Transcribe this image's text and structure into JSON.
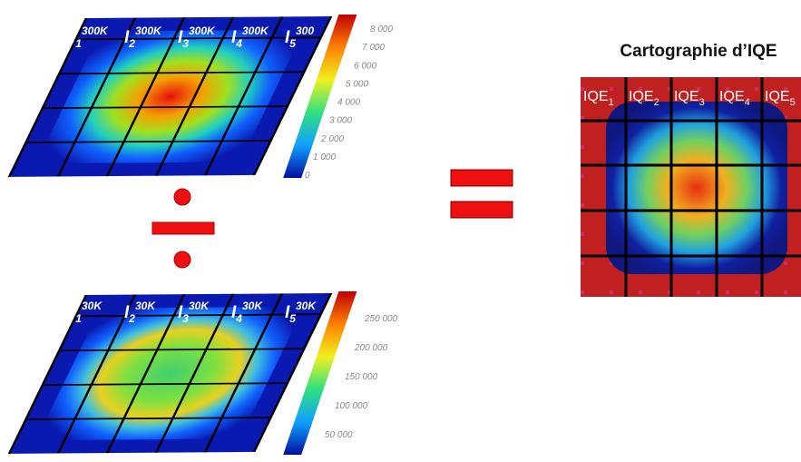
{
  "top_map": {
    "labels": [
      {
        "symbol": "I",
        "index": "1",
        "temperature": "300K"
      },
      {
        "symbol": "I",
        "index": "2",
        "temperature": "300K"
      },
      {
        "symbol": "I",
        "index": "3",
        "temperature": "300K"
      },
      {
        "symbol": "I",
        "index": "4",
        "temperature": "300K"
      },
      {
        "symbol": "I",
        "index": "5",
        "temperature": "300"
      }
    ],
    "colorbar_ticks": [
      "8 000",
      "7 000",
      "6 000",
      "5 000",
      "4 000",
      "3 000",
      "2 000",
      "1 000",
      "0"
    ]
  },
  "bottom_map": {
    "labels": [
      {
        "symbol": "I",
        "index": "1",
        "temperature": "30K"
      },
      {
        "symbol": "I",
        "index": "2",
        "temperature": "30K"
      },
      {
        "symbol": "I",
        "index": "3",
        "temperature": "30K"
      },
      {
        "symbol": "I",
        "index": "4",
        "temperature": "30K"
      },
      {
        "symbol": "I",
        "index": "5",
        "temperature": "30K"
      }
    ],
    "colorbar_ticks": [
      "250 000",
      "200 000",
      "150 000",
      "100 000",
      "50 000"
    ]
  },
  "iqe_map": {
    "title": "Cartographie d’IQE",
    "labels": [
      {
        "symbol": "IQE",
        "index": "1"
      },
      {
        "symbol": "IQE",
        "index": "2"
      },
      {
        "symbol": "IQE",
        "index": "3"
      },
      {
        "symbol": "IQE",
        "index": "4"
      },
      {
        "symbol": "IQE",
        "index": "5"
      }
    ]
  }
}
